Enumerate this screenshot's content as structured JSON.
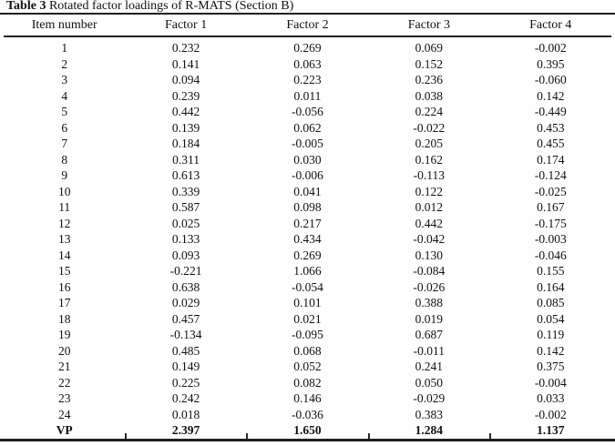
{
  "document": {
    "caption_label": "Table 3",
    "caption_text": "Rotated factor loadings of R-MATS (Section B)"
  },
  "table": {
    "columns": [
      "Item number",
      "Factor 1",
      "Factor 2",
      "Factor 3",
      "Factor 4"
    ],
    "rows": [
      {
        "item": "1",
        "values": [
          "0.232",
          "0.269",
          "0.069",
          "-0.002"
        ],
        "bold": false
      },
      {
        "item": "2",
        "values": [
          "0.141",
          "0.063",
          "0.152",
          "0.395"
        ],
        "bold": false
      },
      {
        "item": "3",
        "values": [
          "0.094",
          "0.223",
          "0.236",
          "-0.060"
        ],
        "bold": false
      },
      {
        "item": "4",
        "values": [
          "0.239",
          "0.011",
          "0.038",
          "0.142"
        ],
        "bold": false
      },
      {
        "item": "5",
        "values": [
          "0.442",
          "-0.056",
          "0.224",
          "-0.449"
        ],
        "bold": false
      },
      {
        "item": "6",
        "values": [
          "0.139",
          "0.062",
          "-0.022",
          "0.453"
        ],
        "bold": false
      },
      {
        "item": "7",
        "values": [
          "0.184",
          "-0.005",
          "0.205",
          "0.455"
        ],
        "bold": false
      },
      {
        "item": "8",
        "values": [
          "0.311",
          "0.030",
          "0.162",
          "0.174"
        ],
        "bold": false
      },
      {
        "item": "9",
        "values": [
          "0.613",
          "-0.006",
          "-0.113",
          "-0.124"
        ],
        "bold": false
      },
      {
        "item": "10",
        "values": [
          "0.339",
          "0.041",
          "0.122",
          "-0.025"
        ],
        "bold": false
      },
      {
        "item": "11",
        "values": [
          "0.587",
          "0.098",
          "0.012",
          "0.167"
        ],
        "bold": false
      },
      {
        "item": "12",
        "values": [
          "0.025",
          "0.217",
          "0.442",
          "-0.175"
        ],
        "bold": false
      },
      {
        "item": "13",
        "values": [
          "0.133",
          "0.434",
          "-0.042",
          "-0.003"
        ],
        "bold": false
      },
      {
        "item": "14",
        "values": [
          "0.093",
          "0.269",
          "0.130",
          "-0.046"
        ],
        "bold": false
      },
      {
        "item": "15",
        "values": [
          "-0.221",
          "1.066",
          "-0.084",
          "0.155"
        ],
        "bold": false
      },
      {
        "item": "16",
        "values": [
          "0.638",
          "-0.054",
          "-0.026",
          "0.164"
        ],
        "bold": false
      },
      {
        "item": "17",
        "values": [
          "0.029",
          "0.101",
          "0.388",
          "0.085"
        ],
        "bold": false
      },
      {
        "item": "18",
        "values": [
          "0.457",
          "0.021",
          "0.019",
          "0.054"
        ],
        "bold": false
      },
      {
        "item": "19",
        "values": [
          "-0.134",
          "-0.095",
          "0.687",
          "0.119"
        ],
        "bold": false
      },
      {
        "item": "20",
        "values": [
          "0.485",
          "0.068",
          "-0.011",
          "0.142"
        ],
        "bold": false
      },
      {
        "item": "21",
        "values": [
          "0.149",
          "0.052",
          "0.241",
          "0.375"
        ],
        "bold": false
      },
      {
        "item": "22",
        "values": [
          "0.225",
          "0.082",
          "0.050",
          "-0.004"
        ],
        "bold": false
      },
      {
        "item": "23",
        "values": [
          "0.242",
          "0.146",
          "-0.029",
          "0.033"
        ],
        "bold": false
      },
      {
        "item": "24",
        "values": [
          "0.018",
          "-0.036",
          "0.383",
          "-0.002"
        ],
        "bold": false
      },
      {
        "item": "VP",
        "values": [
          "2.397",
          "1.650",
          "1.284",
          "1.137"
        ],
        "bold": true
      }
    ]
  }
}
